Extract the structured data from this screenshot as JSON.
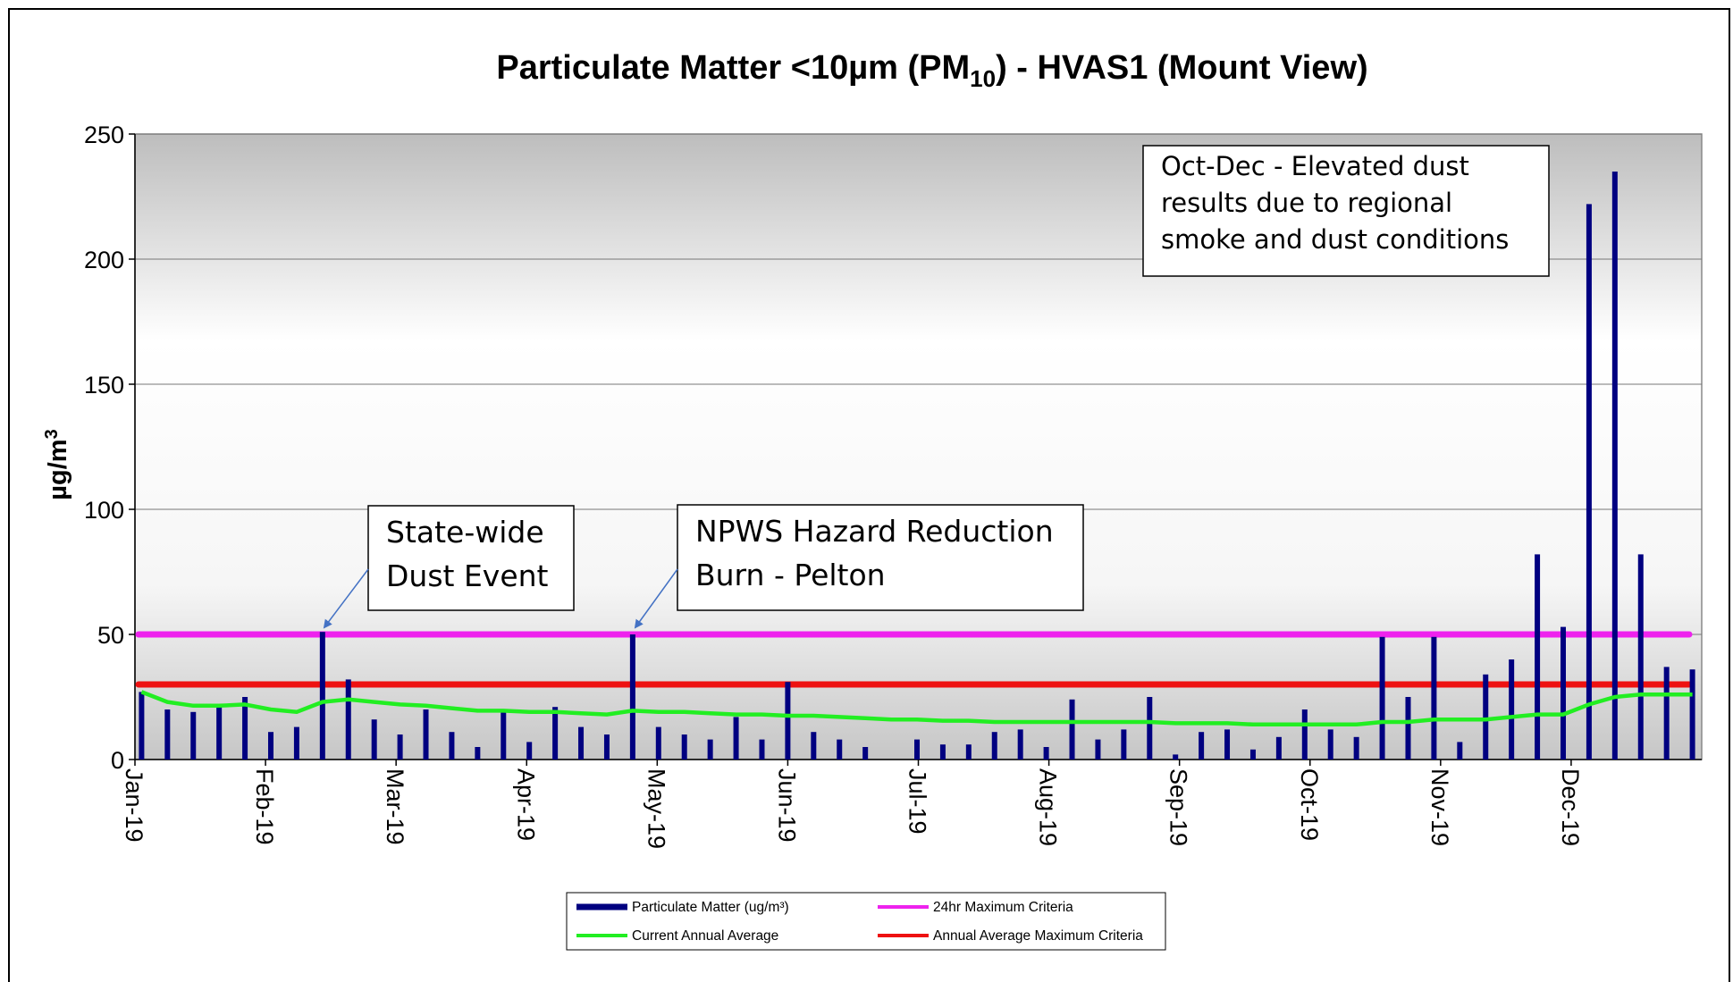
{
  "chart_data": {
    "type": "bar",
    "title_parts": [
      "Particulate Matter <10µm (PM",
      "10",
      ") - HVAS1 (Mount View)"
    ],
    "y_label_parts": [
      "µg/m",
      "3"
    ],
    "xticks": [
      "Jan-19",
      "Feb-19",
      "Mar-19",
      "Apr-19",
      "May-19",
      "Jun-19",
      "Jul-19",
      "Aug-19",
      "Sep-19",
      "Oct-19",
      "Nov-19",
      "Dec-19"
    ],
    "ylim": [
      0,
      250
    ],
    "yticks": [
      0,
      50,
      100,
      150,
      200,
      250
    ],
    "grid": true,
    "legend": "bottom",
    "series": [
      {
        "name": "Particulate Matter  (ug/m³)",
        "color": "#000080",
        "type": "bar",
        "values": [
          27,
          20,
          19,
          21,
          25,
          11,
          13,
          51,
          32,
          16,
          10,
          20,
          11,
          5,
          19,
          7,
          21,
          13,
          10,
          50,
          13,
          10,
          8,
          17,
          8,
          31,
          11,
          8,
          5,
          null,
          8,
          6,
          6,
          11,
          12,
          5,
          24,
          8,
          12,
          25,
          2,
          11,
          12,
          4,
          9,
          20,
          12,
          9,
          49,
          25,
          49,
          7,
          34,
          40,
          82,
          53,
          222,
          235,
          82,
          37,
          36
        ]
      },
      {
        "name": "Current Annual Average",
        "color": "#22ee22",
        "type": "line",
        "values": [
          27,
          23,
          21.5,
          21.5,
          22,
          20,
          19,
          23,
          24,
          23,
          22,
          21.5,
          20.5,
          19.5,
          19.5,
          19,
          19,
          18.5,
          18,
          19.5,
          19,
          19,
          18.5,
          18,
          18,
          17.5,
          17.5,
          17,
          16.5,
          16,
          16,
          15.5,
          15.5,
          15,
          15,
          15,
          15,
          15,
          15,
          15,
          14.5,
          14.5,
          14.5,
          14,
          14,
          14,
          14,
          14,
          15,
          15,
          16,
          16,
          16,
          17,
          18,
          18,
          22,
          25,
          26,
          26,
          26
        ]
      }
    ],
    "reference_lines": [
      {
        "name": "24hr Maximum Criteria",
        "color": "#ee22ee",
        "value": 50
      },
      {
        "name": "Annual Average Maximum Criteria",
        "color": "#ee1111",
        "value": 30
      }
    ],
    "annotations": [
      {
        "lines": [
          "State-wide",
          "Dust Event"
        ]
      },
      {
        "lines": [
          "NPWS Hazard Reduction",
          "Burn - Pelton"
        ]
      },
      {
        "lines": [
          "Oct-Dec - Elevated dust",
          "results due to regional",
          "smoke and dust conditions"
        ]
      }
    ]
  }
}
